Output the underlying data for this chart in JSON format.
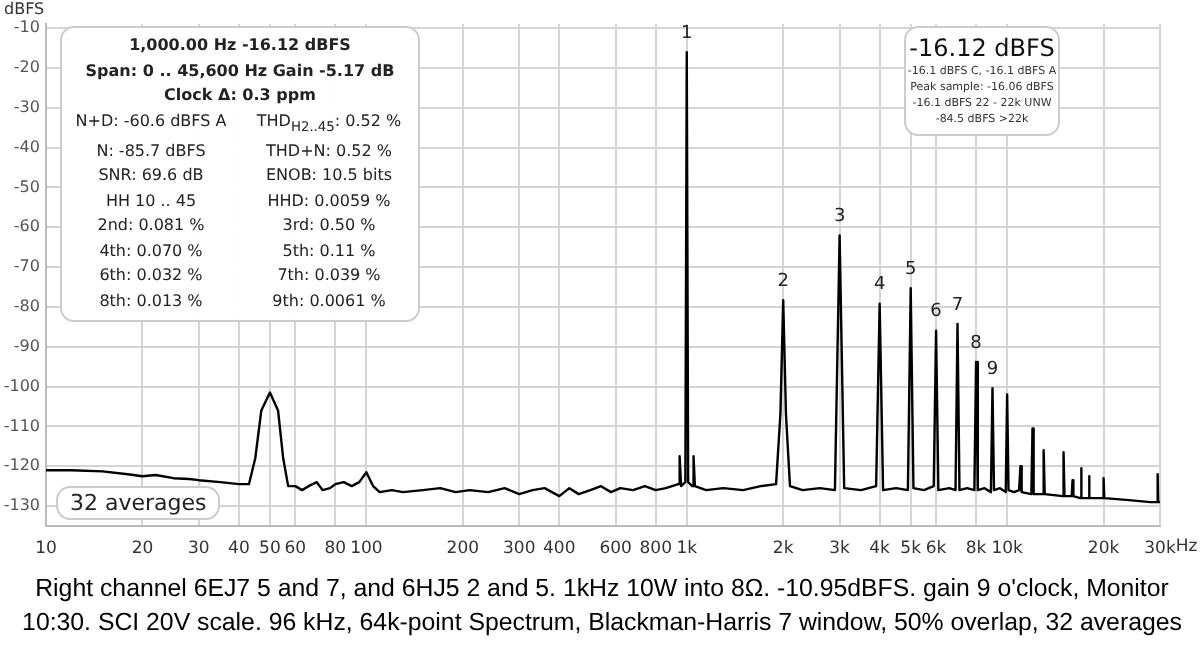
{
  "chart_data": {
    "type": "line",
    "ylabel": "dBFS",
    "x": [
      10,
      12,
      15,
      18,
      20,
      22,
      25,
      28,
      30,
      35,
      40,
      43,
      45,
      47,
      50,
      53,
      55,
      57,
      60,
      63,
      66,
      70,
      73,
      77,
      80,
      85,
      90,
      95,
      100,
      105,
      110,
      120,
      130,
      150,
      170,
      190,
      210,
      240,
      270,
      300,
      330,
      360,
      400,
      430,
      460,
      500,
      540,
      580,
      620,
      680,
      740,
      800,
      860,
      900,
      940,
      950,
      960,
      990,
      1000,
      1010,
      1040,
      1050,
      1060,
      1150,
      1300,
      1500,
      1700,
      1900,
      1960,
      2000,
      2040,
      2100,
      2300,
      2600,
      2900,
      3000,
      3100,
      3500,
      3900,
      4000,
      4100,
      4500,
      4900,
      5000,
      5100,
      5500,
      5900,
      6000,
      6100,
      6600,
      6900,
      7000,
      7100,
      7500,
      7900,
      8000,
      8100,
      8500,
      8900,
      9000,
      9100,
      9500,
      9900,
      10000,
      10100,
      10500,
      10900,
      11000,
      11100,
      11900,
      12000,
      12100,
      12900,
      13000,
      13100,
      14900,
      15000,
      15100,
      15900,
      16000,
      16100,
      16900,
      17000,
      17100,
      17900,
      18000,
      18100,
      19900,
      20000,
      20100,
      24000,
      28000,
      29400,
      29500,
      29600,
      30000
    ],
    "series": [
      {
        "color": "#000000",
        "values": [
          -121,
          -121,
          -121.3,
          -122,
          -122.5,
          -122.2,
          -123,
          -123.2,
          -123.5,
          -124,
          -124.5,
          -124.5,
          -118,
          -106,
          -101.5,
          -106,
          -118,
          -125,
          -125,
          -126,
          -125,
          -124,
          -126,
          -125.5,
          -124.5,
          -124,
          -125,
          -124,
          -121.5,
          -125,
          -126.5,
          -126,
          -126.5,
          -126,
          -125.5,
          -126.5,
          -126,
          -126.5,
          -125.5,
          -127,
          -126,
          -125.5,
          -127.5,
          -125.5,
          -127,
          -126,
          -125,
          -126.5,
          -125.5,
          -126,
          -125,
          -126,
          -125.5,
          -125,
          -124.5,
          -117.5,
          -125,
          -124,
          -16.1,
          -124,
          -125,
          -117.5,
          -125,
          -126,
          -125.5,
          -126,
          -125,
          -124.5,
          -107,
          -78.3,
          -107,
          -125,
          -126,
          -125.5,
          -126,
          -62.1,
          -125.5,
          -126,
          -125,
          -79.2,
          -126,
          -125.5,
          -126,
          -75.3,
          -125.5,
          -126,
          -125,
          -86,
          -126,
          -125.5,
          -126,
          -84.3,
          -126,
          -125.5,
          -126,
          -93.8,
          -126,
          -125.5,
          -126.5,
          -100.4,
          -126,
          -125.5,
          -126.5,
          -102,
          -126,
          -126.5,
          -126,
          -120,
          -126.5,
          -127,
          -110.5,
          -127,
          -127,
          -116,
          -127,
          -127.5,
          -116.5,
          -127.5,
          -127.5,
          -123.5,
          -127.5,
          -128,
          -120.5,
          -128,
          -128,
          -122.5,
          -128,
          -128,
          -123,
          -128,
          -128.5,
          -129,
          -129,
          -122,
          -129,
          -129
        ]
      }
    ],
    "log": "x",
    "xlim": [
      10,
      30000
    ],
    "xticks": [
      10,
      20,
      30,
      40,
      50,
      60,
      80,
      100,
      200,
      300,
      400,
      600,
      800,
      {
        "value": 1000,
        "label": "1k"
      },
      {
        "value": 2000,
        "label": "2k"
      },
      {
        "value": 3000,
        "label": "3k"
      },
      {
        "value": 4000,
        "label": "4k"
      },
      {
        "value": 5000,
        "label": "5k"
      },
      {
        "value": 6000,
        "label": "6k"
      },
      {
        "value": 8000,
        "label": "8k"
      },
      {
        "value": 10000,
        "label": "10k"
      },
      {
        "value": 20000,
        "label": "20k"
      },
      {
        "value": 30000,
        "label": "30k"
      }
    ],
    "xlabel": "Hz",
    "ylim": [
      -135,
      -9
    ],
    "yticks": [
      -10,
      -20,
      -30,
      -40,
      -50,
      -60,
      -70,
      -80,
      -90,
      -100,
      -110,
      -120,
      -130
    ],
    "grid": true,
    "legend": false,
    "marker": "none",
    "line_style": "solid",
    "annotations": [
      "1,000.00 Hz  -16.12 dBFS",
      "Span: 0 .. 45,600 Hz   Gain -5.17 dB",
      "Clock Δ: 0.3 ppm",
      "N+D: -60.6 dBFS A",
      "THD$_{H2..45}$: 0.52 %",
      "N: -85.7 dBFS",
      "THD+N: 0.52 %",
      "SNR: 69.6 dB",
      "ENOB: 10.5 bits",
      "HH 10 .. 45",
      "HHD: 0.0059 %",
      "2nd: 0.081 %",
      "3rd: 0.50 %",
      "4th: 0.070 %",
      "5th: 0.11 %",
      "6th: 0.032 %",
      "7th: 0.039 %",
      "8th: 0.013 %",
      "9th: 0.0061 %",
      "-16.12 dBFS",
      "-16.1 dBFS C, -16.1 dBFS A",
      "Peak sample: -16.06 dBFS",
      "-16.1 dBFS 22 - 22k UNW",
      "-84.5 dBFS >22k",
      "32 averages",
      "Right channel 6EJ7 5 and 7, and 6HJ5 2 and 5. 1kHz 10W into 8Ω. -10.95dBFS. gain 9 o'clock, Monitor 10:30. SCI 20V scale. 96 kHz, 64k-point Spectrum, Blackman-Harris 7 window, 50% overlap, 32 averages",
      {
        "text": "1",
        "x": 1000,
        "y": -16.1
      },
      {
        "text": "2",
        "x": 2000,
        "y": -78.3
      },
      {
        "text": "3",
        "x": 3000,
        "y": -62.1
      },
      {
        "text": "4",
        "x": 4000,
        "y": -79.2
      },
      {
        "text": "5",
        "x": 5000,
        "y": -75.3
      },
      {
        "text": "6",
        "x": 6000,
        "y": -86
      },
      {
        "text": "7",
        "x": 7000,
        "y": -84.3
      },
      {
        "text": "8",
        "x": 8000,
        "y": -93.8
      },
      {
        "text": "9",
        "x": 9000,
        "y": -100.4
      }
    ]
  }
}
